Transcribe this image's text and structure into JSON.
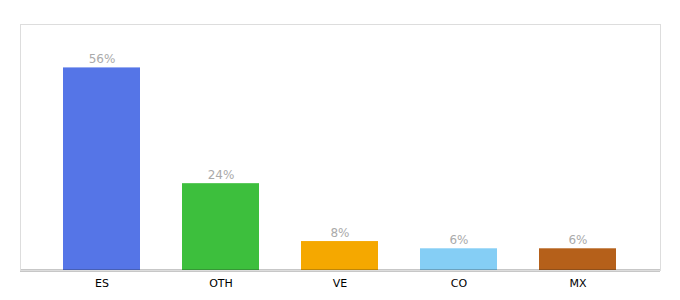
{
  "chart_data": {
    "type": "bar",
    "categories": [
      "ES",
      "OTH",
      "VE",
      "CO",
      "MX"
    ],
    "values": [
      56,
      24,
      8,
      6,
      6
    ],
    "value_labels": [
      "56%",
      "24%",
      "8%",
      "6%",
      "6%"
    ],
    "colors": [
      "#5575e7",
      "#3dbf3d",
      "#f5a800",
      "#85cef5",
      "#b5601a"
    ],
    "ylim": [
      0,
      68
    ],
    "data_labels": true,
    "tick_labels": "x"
  }
}
